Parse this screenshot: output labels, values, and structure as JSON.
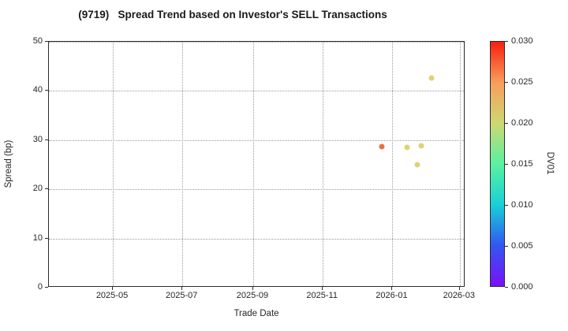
{
  "chart_data": {
    "type": "scatter",
    "title": "(9719)   Spread Trend based on Investor's SELL Transactions",
    "xlabel": "Trade Date",
    "ylabel": "Spread (bp)",
    "xlim": [
      "2025-03-06",
      "2026-03-06"
    ],
    "ylim": [
      0,
      50
    ],
    "x_ticks": [
      "2025-05",
      "2025-07",
      "2025-09",
      "2025-11",
      "2026-01",
      "2026-03"
    ],
    "y_ticks": [
      0,
      10,
      20,
      30,
      40,
      50
    ],
    "grid": true,
    "grid_style": "dotted",
    "legend": "none",
    "points": [
      {
        "date": "2025-12-23",
        "spread_bp": 28.7,
        "dv01": 0.027,
        "color": "#ee6e3d"
      },
      {
        "date": "2026-01-14",
        "spread_bp": 28.6,
        "dv01": 0.02,
        "color": "#ddd373"
      },
      {
        "date": "2026-01-23",
        "spread_bp": 25.0,
        "dv01": 0.02,
        "color": "#ddd373"
      },
      {
        "date": "2026-01-26",
        "spread_bp": 28.8,
        "dv01": 0.02,
        "color": "#ddd373"
      },
      {
        "date": "2026-02-04",
        "spread_bp": 42.7,
        "dv01": 0.02,
        "color": "#ddd373"
      }
    ],
    "colorbar": {
      "label": "DV01",
      "min": 0.0,
      "max": 0.03,
      "tick_labels": [
        "0.030",
        "0.025",
        "0.020",
        "0.015",
        "0.010",
        "0.005",
        "0.000"
      ],
      "tick_values": [
        0.03,
        0.025,
        0.02,
        0.015,
        0.01,
        0.005,
        0.0
      ],
      "gradient_stops": [
        {
          "value": 0.0,
          "color": "#7a0ff7"
        },
        {
          "value": 0.005,
          "color": "#3157f2"
        },
        {
          "value": 0.01,
          "color": "#18d1d6"
        },
        {
          "value": 0.015,
          "color": "#5af2a0"
        },
        {
          "value": 0.02,
          "color": "#cdd873"
        },
        {
          "value": 0.025,
          "color": "#f89e5c"
        },
        {
          "value": 0.03,
          "color": "#f81f0e"
        }
      ]
    },
    "colors": {
      "plot_border": "#2b2b2b",
      "gridline": "#9b9b9b",
      "background": "#ffffff",
      "text": "#262626"
    }
  }
}
